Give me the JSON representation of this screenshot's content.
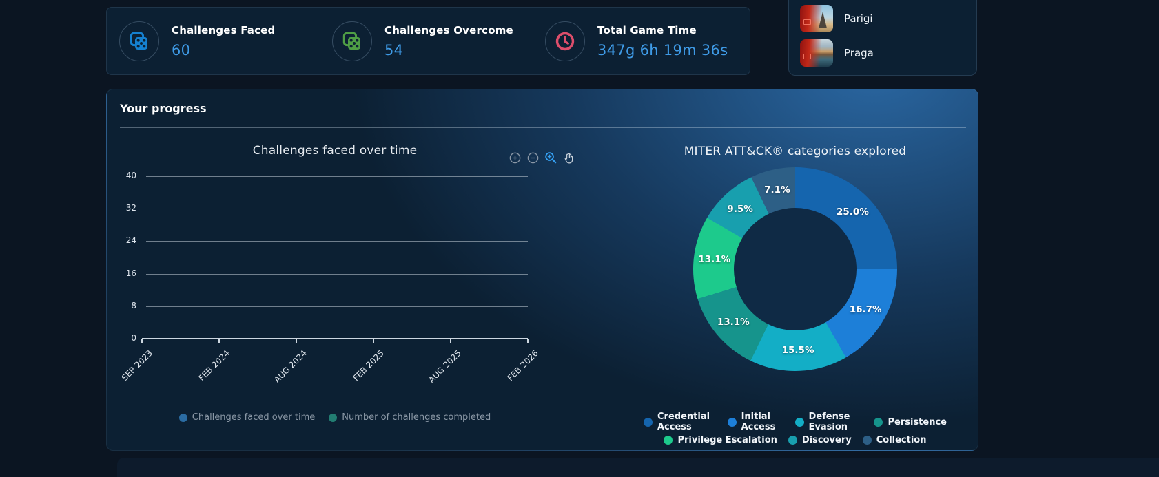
{
  "stats": {
    "value_color": "#3f9be7",
    "items": [
      {
        "label": "Challenges Faced",
        "value": "60",
        "icon": "dice-icon",
        "icon_color": "#1581d1"
      },
      {
        "label": "Challenges Overcome",
        "value": "54",
        "icon": "dice-icon",
        "icon_color": "#4f9e45"
      },
      {
        "label": "Total Game Time",
        "value": "347g 6h 19m 36s",
        "icon": "clock-icon",
        "icon_color": "#dd4e6b"
      }
    ]
  },
  "cities": {
    "items": [
      {
        "label": "Parigi"
      },
      {
        "label": "Praga"
      }
    ]
  },
  "progress": {
    "title": "Your progress"
  },
  "chart_toolbar": {
    "icons": [
      "zoom-in-circle-icon",
      "zoom-out-circle-icon",
      "magnifier-zoom-icon",
      "pan-hand-icon"
    ],
    "active_color": "#35a0f2",
    "idle_color": "#8a97a6"
  },
  "chart_data": [
    {
      "type": "line",
      "title": "Challenges faced over time",
      "x_ticks": [
        "SEP 2023",
        "FEB 2024",
        "AUG 2024",
        "FEB 2025",
        "AUG 2025",
        "FEB 2026"
      ],
      "ylim": [
        0,
        40
      ],
      "y_ticks": [
        0,
        8,
        16,
        24,
        32,
        40
      ],
      "grid": true,
      "legend_position": "bottom",
      "series": [
        {
          "name": "Challenges faced over time",
          "color": "#2b6ca3",
          "values": []
        },
        {
          "name": "Number of challenges completed",
          "color": "#227d72",
          "values": []
        }
      ]
    },
    {
      "type": "pie",
      "donut": true,
      "title": "MITER ATT&CK® categories explored",
      "labels": [
        "Credential Access",
        "Initial Access",
        "Defense Evasion",
        "Persistence",
        "Privilege Escalation",
        "Discovery",
        "Collection"
      ],
      "values": [
        25.0,
        16.7,
        15.5,
        13.1,
        13.1,
        9.5,
        7.1
      ],
      "colors": [
        "#1565ae",
        "#1d7fd8",
        "#13aec6",
        "#16948c",
        "#1dca8c",
        "#189fae",
        "#2d5f86"
      ],
      "value_suffix": "%",
      "legend_position": "bottom",
      "legend_rows": [
        4,
        3
      ],
      "hole_color": "#0f2a45"
    }
  ]
}
